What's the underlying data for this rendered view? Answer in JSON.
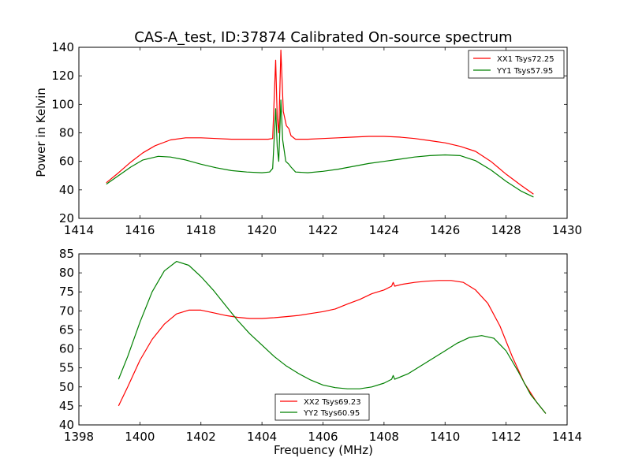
{
  "chart_data": [
    {
      "type": "line",
      "title": "CAS-A_test, ID:37874 Calibrated On-source spectrum",
      "xlabel": "",
      "ylabel": "Power in Kelvin",
      "xlim": [
        1414,
        1430
      ],
      "ylim": [
        20,
        140
      ],
      "xticks": [
        1414,
        1416,
        1418,
        1420,
        1422,
        1424,
        1426,
        1428,
        1430
      ],
      "yticks": [
        20,
        40,
        60,
        80,
        100,
        120,
        140
      ],
      "grid": false,
      "legend_position": "top-right",
      "series": [
        {
          "name": "XX1 Tsys72.25",
          "color": "#ff0000",
          "points": [
            [
              1414.9,
              45
            ],
            [
              1415.3,
              52
            ],
            [
              1415.7,
              59.5
            ],
            [
              1416.1,
              66
            ],
            [
              1416.5,
              71
            ],
            [
              1417.0,
              75
            ],
            [
              1417.5,
              76.5
            ],
            [
              1418.0,
              76.5
            ],
            [
              1418.5,
              76
            ],
            [
              1419.0,
              75.5
            ],
            [
              1419.6,
              75.5
            ],
            [
              1420.2,
              75.5
            ],
            [
              1420.35,
              76
            ],
            [
              1420.45,
              131
            ],
            [
              1420.5,
              90
            ],
            [
              1420.55,
              80
            ],
            [
              1420.62,
              138
            ],
            [
              1420.7,
              95
            ],
            [
              1420.8,
              85
            ],
            [
              1420.88,
              83
            ],
            [
              1420.95,
              78
            ],
            [
              1421.1,
              75.5
            ],
            [
              1421.5,
              75.5
            ],
            [
              1422.0,
              76
            ],
            [
              1422.5,
              76.5
            ],
            [
              1423.0,
              77
            ],
            [
              1423.5,
              77.5
            ],
            [
              1424.0,
              77.5
            ],
            [
              1424.5,
              77
            ],
            [
              1425.0,
              76
            ],
            [
              1425.5,
              74.5
            ],
            [
              1426.0,
              73
            ],
            [
              1426.5,
              70.5
            ],
            [
              1427.0,
              67
            ],
            [
              1427.5,
              60
            ],
            [
              1428.0,
              51
            ],
            [
              1428.5,
              43
            ],
            [
              1428.9,
              37
            ]
          ]
        },
        {
          "name": "YY1 Tsys57.95",
          "color": "#008000",
          "points": [
            [
              1414.9,
              44
            ],
            [
              1415.3,
              50
            ],
            [
              1415.7,
              56
            ],
            [
              1416.1,
              61
            ],
            [
              1416.6,
              63.5
            ],
            [
              1417.0,
              63
            ],
            [
              1417.5,
              61
            ],
            [
              1418.0,
              58
            ],
            [
              1418.5,
              55.5
            ],
            [
              1419.0,
              53.5
            ],
            [
              1419.5,
              52.5
            ],
            [
              1420.0,
              52
            ],
            [
              1420.25,
              52.5
            ],
            [
              1420.35,
              55
            ],
            [
              1420.45,
              97
            ],
            [
              1420.5,
              70
            ],
            [
              1420.55,
              60
            ],
            [
              1420.62,
              103
            ],
            [
              1420.68,
              75
            ],
            [
              1420.78,
              60
            ],
            [
              1420.88,
              58
            ],
            [
              1420.95,
              56
            ],
            [
              1421.1,
              52.5
            ],
            [
              1421.5,
              52
            ],
            [
              1422.0,
              53
            ],
            [
              1422.5,
              54.5
            ],
            [
              1423.0,
              56.5
            ],
            [
              1423.5,
              58.5
            ],
            [
              1424.0,
              60
            ],
            [
              1424.5,
              61.5
            ],
            [
              1425.0,
              63
            ],
            [
              1425.5,
              64
            ],
            [
              1426.0,
              64.5
            ],
            [
              1426.5,
              64
            ],
            [
              1427.0,
              60.5
            ],
            [
              1427.5,
              54
            ],
            [
              1428.0,
              46
            ],
            [
              1428.5,
              39
            ],
            [
              1428.9,
              35
            ]
          ]
        }
      ]
    },
    {
      "type": "line",
      "title": "",
      "xlabel": "Frequency (MHz)",
      "ylabel": "",
      "xlim": [
        1398,
        1414
      ],
      "ylim": [
        40,
        85
      ],
      "xticks": [
        1398,
        1400,
        1402,
        1404,
        1406,
        1408,
        1410,
        1412,
        1414
      ],
      "yticks": [
        40,
        45,
        50,
        55,
        60,
        65,
        70,
        75,
        80,
        85
      ],
      "grid": false,
      "legend_position": "bottom-center",
      "series": [
        {
          "name": "XX2 Tsys69.23",
          "color": "#ff0000",
          "points": [
            [
              1399.3,
              45
            ],
            [
              1399.6,
              50
            ],
            [
              1400.0,
              57
            ],
            [
              1400.4,
              62.5
            ],
            [
              1400.8,
              66.5
            ],
            [
              1401.2,
              69.2
            ],
            [
              1401.6,
              70.2
            ],
            [
              1402.0,
              70.2
            ],
            [
              1402.4,
              69.5
            ],
            [
              1402.8,
              68.8
            ],
            [
              1403.2,
              68.3
            ],
            [
              1403.6,
              68
            ],
            [
              1404.0,
              68
            ],
            [
              1404.4,
              68.2
            ],
            [
              1404.8,
              68.5
            ],
            [
              1405.2,
              68.8
            ],
            [
              1405.6,
              69.3
            ],
            [
              1406.0,
              69.8
            ],
            [
              1406.4,
              70.5
            ],
            [
              1406.8,
              71.8
            ],
            [
              1407.2,
              73
            ],
            [
              1407.6,
              74.5
            ],
            [
              1408.0,
              75.5
            ],
            [
              1408.25,
              76.5
            ],
            [
              1408.3,
              77.5
            ],
            [
              1408.35,
              76.5
            ],
            [
              1408.6,
              77
            ],
            [
              1409.0,
              77.5
            ],
            [
              1409.4,
              77.8
            ],
            [
              1409.8,
              78
            ],
            [
              1410.2,
              78
            ],
            [
              1410.6,
              77.5
            ],
            [
              1411.0,
              75.5
            ],
            [
              1411.4,
              72
            ],
            [
              1411.8,
              66
            ],
            [
              1412.2,
              58
            ],
            [
              1412.6,
              51
            ],
            [
              1413.0,
              46
            ],
            [
              1413.3,
              43
            ]
          ]
        },
        {
          "name": "YY2 Tsys60.95",
          "color": "#008000",
          "points": [
            [
              1399.3,
              52
            ],
            [
              1399.6,
              58
            ],
            [
              1400.0,
              67
            ],
            [
              1400.4,
              75
            ],
            [
              1400.8,
              80.5
            ],
            [
              1401.2,
              83
            ],
            [
              1401.6,
              82
            ],
            [
              1402.0,
              79
            ],
            [
              1402.4,
              75.5
            ],
            [
              1402.8,
              71.5
            ],
            [
              1403.2,
              67.5
            ],
            [
              1403.6,
              64
            ],
            [
              1404.0,
              61
            ],
            [
              1404.4,
              58
            ],
            [
              1404.8,
              55.5
            ],
            [
              1405.2,
              53.5
            ],
            [
              1405.6,
              51.8
            ],
            [
              1406.0,
              50.5
            ],
            [
              1406.4,
              49.8
            ],
            [
              1406.8,
              49.5
            ],
            [
              1407.2,
              49.5
            ],
            [
              1407.6,
              50
            ],
            [
              1408.0,
              51
            ],
            [
              1408.25,
              52
            ],
            [
              1408.3,
              53
            ],
            [
              1408.35,
              52
            ],
            [
              1408.8,
              53.5
            ],
            [
              1409.2,
              55.5
            ],
            [
              1409.6,
              57.5
            ],
            [
              1410.0,
              59.5
            ],
            [
              1410.4,
              61.5
            ],
            [
              1410.8,
              63
            ],
            [
              1411.2,
              63.5
            ],
            [
              1411.6,
              62.8
            ],
            [
              1412.0,
              59.5
            ],
            [
              1412.4,
              54
            ],
            [
              1412.8,
              48
            ],
            [
              1413.3,
              43
            ]
          ]
        }
      ]
    }
  ]
}
